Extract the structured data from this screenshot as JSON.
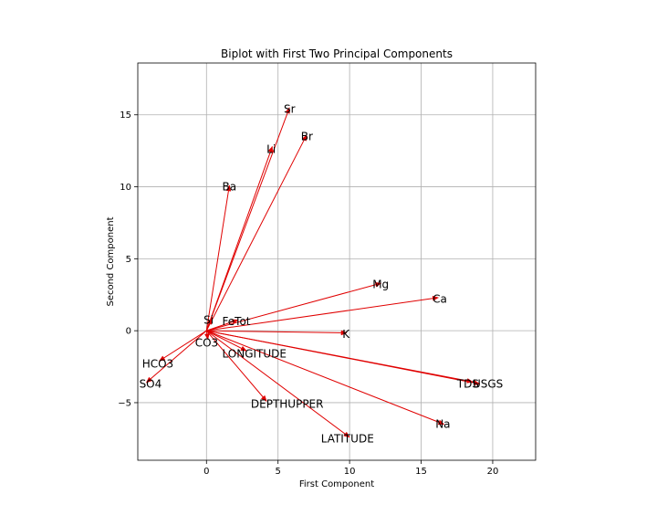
{
  "chart_data": {
    "type": "biplot",
    "title": "Biplot with First Two Principal Components",
    "xlabel": "First Component",
    "ylabel": "Second Component",
    "xlim": [
      -4.8,
      23.0
    ],
    "ylim": [
      -9.0,
      18.6
    ],
    "xticks": [
      0,
      5,
      10,
      15,
      20
    ],
    "yticks": [
      -5,
      0,
      5,
      10,
      15
    ],
    "grid": true,
    "arrow_color": "#e00000",
    "vectors": [
      {
        "name": "Sr",
        "x": 5.8,
        "y": 15.5,
        "lx": 5.4,
        "ly": 15.4
      },
      {
        "name": "Br",
        "x": 7.0,
        "y": 13.6,
        "lx": 6.6,
        "ly": 13.5
      },
      {
        "name": "Li",
        "x": 4.6,
        "y": 12.8,
        "lx": 4.2,
        "ly": 12.6
      },
      {
        "name": "Ba",
        "x": 1.6,
        "y": 10.1,
        "lx": 1.1,
        "ly": 10.0
      },
      {
        "name": "Mg",
        "x": 12.2,
        "y": 3.3,
        "lx": 11.6,
        "ly": 3.2
      },
      {
        "name": "Ca",
        "x": 16.2,
        "y": 2.3,
        "lx": 15.8,
        "ly": 2.2
      },
      {
        "name": "Si",
        "x": 0.35,
        "y": 0.85,
        "lx": -0.2,
        "ly": 0.75
      },
      {
        "name": "FeTot",
        "x": 2.2,
        "y": 0.75,
        "lx": 1.1,
        "ly": 0.65
      },
      {
        "name": "K",
        "x": 9.8,
        "y": -0.15,
        "lx": 9.5,
        "ly": -0.25
      },
      {
        "name": "CO3",
        "x": 0.1,
        "y": -0.6,
        "lx": -0.8,
        "ly": -0.85
      },
      {
        "name": "LONGITUDE",
        "x": 2.8,
        "y": -1.4,
        "lx": 1.1,
        "ly": -1.6
      },
      {
        "name": "HCO3",
        "x": -3.3,
        "y": -2.1,
        "lx": -4.5,
        "ly": -2.3
      },
      {
        "name": "SO4",
        "x": -4.2,
        "y": -3.6,
        "lx": -4.7,
        "ly": -3.7
      },
      {
        "name": "TDS",
        "x": 18.6,
        "y": -3.55,
        "lx": 17.5,
        "ly": -3.7
      },
      {
        "name": "USGS",
        "x": 19.1,
        "y": -3.7,
        "lx": 18.6,
        "ly": -3.7
      },
      {
        "name": "DEPTHUPPER",
        "x": 4.2,
        "y": -4.9,
        "lx": 3.1,
        "ly": -5.1
      },
      {
        "name": "Na",
        "x": 16.6,
        "y": -6.5,
        "lx": 16.0,
        "ly": -6.5
      },
      {
        "name": "LATITUDE",
        "x": 10.0,
        "y": -7.4,
        "lx": 8.0,
        "ly": -7.5
      }
    ]
  }
}
